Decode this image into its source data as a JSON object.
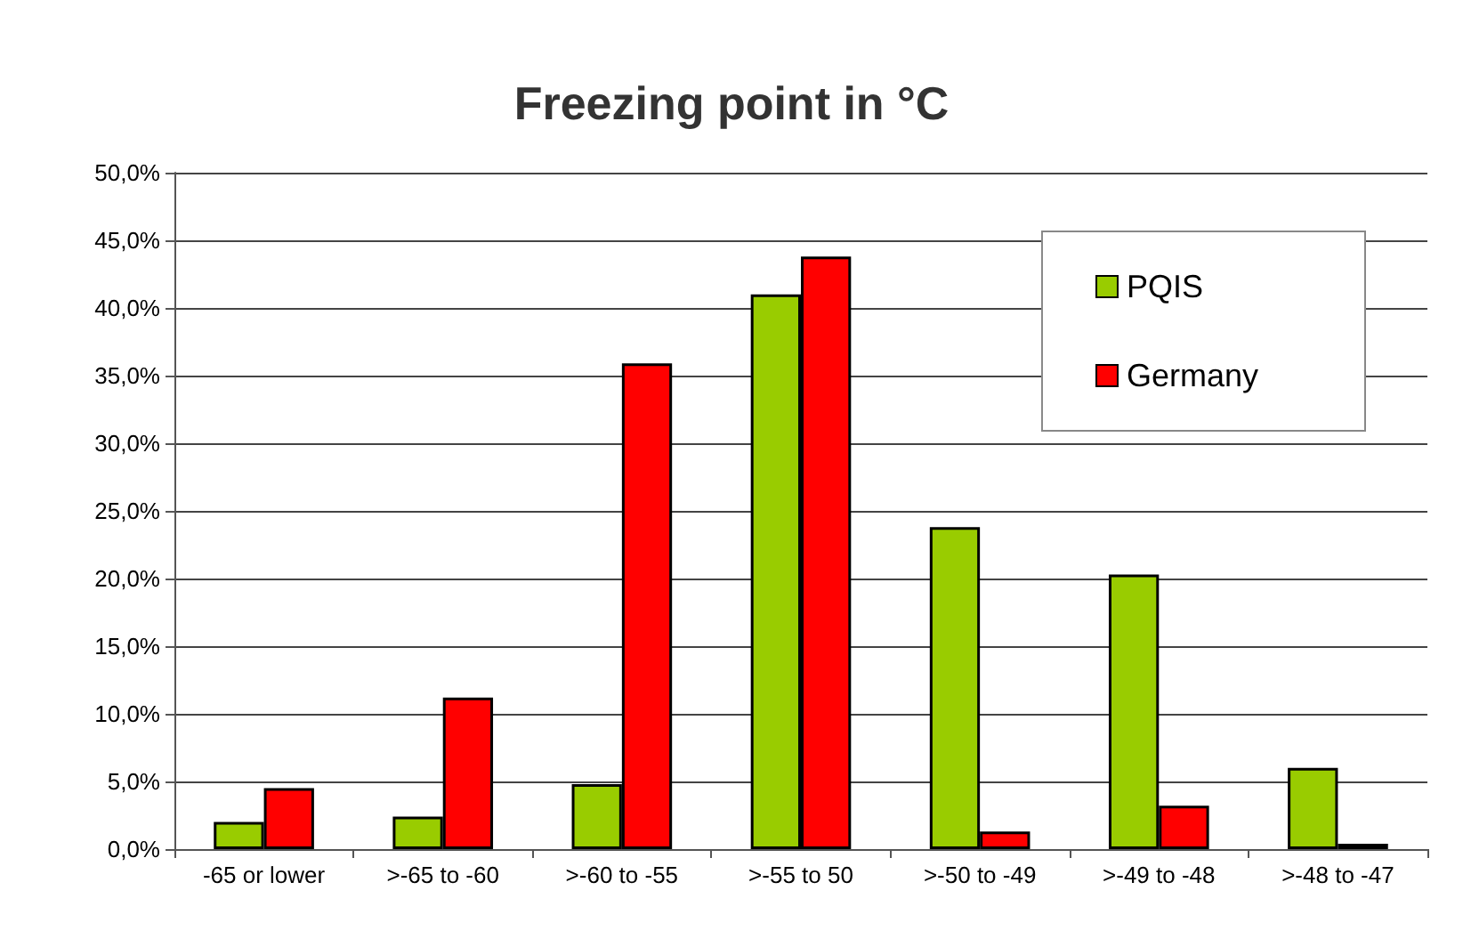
{
  "chart_data": {
    "type": "bar",
    "title": "Freezing point in °C",
    "categories": [
      "-65 or lower",
      ">-65 to -60",
      ">-60 to -55",
      ">-55 to 50",
      ">-50 to -49",
      ">-49 to -48",
      ">-48 to -47"
    ],
    "series": [
      {
        "name": "PQIS",
        "color": "#99cc00",
        "values": [
          2.0,
          2.4,
          4.8,
          41.0,
          23.8,
          20.3,
          6.0
        ]
      },
      {
        "name": "Germany",
        "color": "#ff0000",
        "values": [
          4.5,
          11.2,
          35.9,
          43.8,
          1.3,
          3.2,
          0.4
        ]
      }
    ],
    "ylim": [
      0,
      50
    ],
    "yticks": [
      {
        "value": 0,
        "label": "0,0%"
      },
      {
        "value": 5,
        "label": "5,0%"
      },
      {
        "value": 10,
        "label": "10,0%"
      },
      {
        "value": 15,
        "label": "15,0%"
      },
      {
        "value": 20,
        "label": "20,0%"
      },
      {
        "value": 25,
        "label": "25,0%"
      },
      {
        "value": 30,
        "label": "30,0%"
      },
      {
        "value": 35,
        "label": "35,0%"
      },
      {
        "value": 40,
        "label": "40,0%"
      },
      {
        "value": 45,
        "label": "45,0%"
      },
      {
        "value": 50,
        "label": "50,0%"
      }
    ],
    "grid": "y",
    "legend": "top right"
  }
}
